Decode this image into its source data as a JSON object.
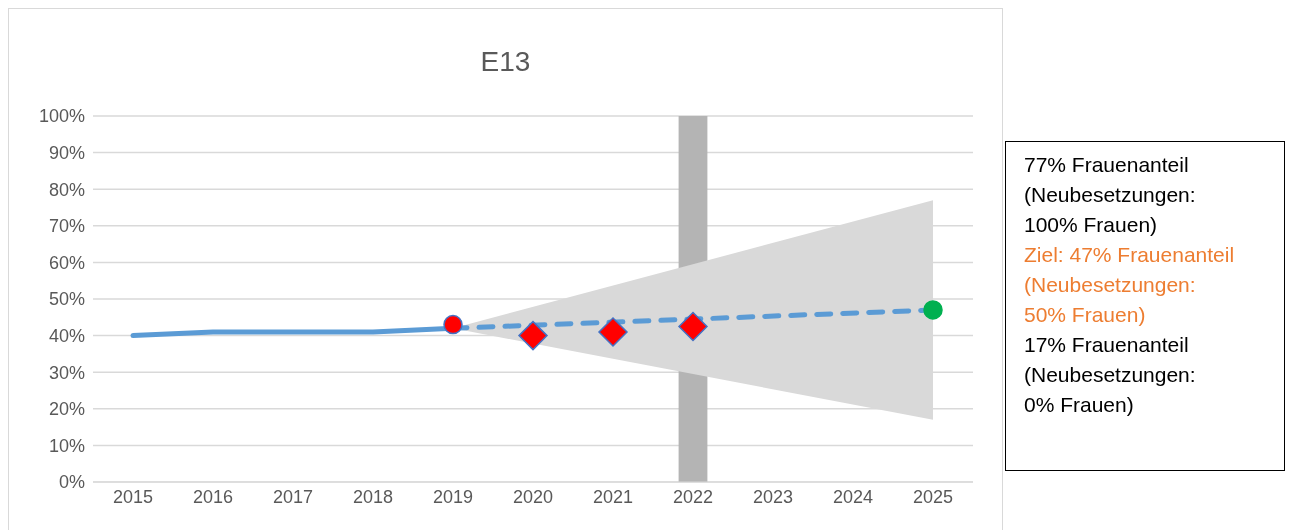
{
  "chart_data": {
    "type": "line",
    "title": "E13",
    "categories": [
      "2015",
      "2016",
      "2017",
      "2018",
      "2019",
      "2020",
      "2021",
      "2022",
      "2023",
      "2024",
      "2025"
    ],
    "series": [
      {
        "color": "#5b9bd5",
        "line_style": "solid",
        "marker": "none",
        "values": [
          40,
          41,
          41,
          41,
          42,
          null,
          null,
          null,
          null,
          null,
          null
        ]
      },
      {
        "type": "line",
        "color": "#5b9bd5",
        "line_style": "dashed",
        "marker": "none",
        "values": [
          null,
          null,
          null,
          null,
          42,
          null,
          null,
          null,
          null,
          null,
          47
        ],
        "lower": [
          null,
          null,
          null,
          null,
          42,
          null,
          null,
          null,
          null,
          null,
          17
        ],
        "upper": [
          null,
          null,
          null,
          null,
          42,
          null,
          null,
          null,
          null,
          null,
          77
        ]
      },
      {
        "type": "scatter",
        "color": "#ff0000",
        "marker": "circle",
        "values": [
          null,
          null,
          null,
          null,
          43,
          null,
          null,
          null,
          null,
          null,
          null
        ]
      },
      {
        "type": "scatter",
        "color": "#ff0000",
        "marker": "diamond",
        "values": [
          null,
          null,
          null,
          null,
          null,
          40,
          41,
          42.5,
          null,
          null,
          null
        ]
      },
      {
        "type": "scatter",
        "color": "#00b050",
        "marker": "circle",
        "values": [
          null,
          null,
          null,
          null,
          null,
          null,
          null,
          null,
          null,
          null,
          47
        ]
      }
    ],
    "bands": [
      {
        "axis": "x",
        "from": "2022",
        "to": "2022",
        "color": "#b4b4b4"
      }
    ],
    "annotations": [
      "77% Frauenanteil (Neubesetzungen: 100% Frauen)",
      "Ziel: 47% Frauenanteil (Neubesetzungen: 50% Frauen)",
      "17% Frauenanteil (Neubesetzungen: 0% Frauen)"
    ],
    "ylim": [
      0,
      100
    ],
    "yticks": [
      {
        "value": 0,
        "label": "0%"
      },
      {
        "value": 10,
        "label": "10%"
      },
      {
        "value": 20,
        "label": "20%"
      },
      {
        "value": 30,
        "label": "30%"
      },
      {
        "value": 40,
        "label": "40%"
      },
      {
        "value": 50,
        "label": "50%"
      },
      {
        "value": 60,
        "label": "60%"
      },
      {
        "value": 70,
        "label": "70%"
      },
      {
        "value": 80,
        "label": "80%"
      },
      {
        "value": 90,
        "label": "90%"
      },
      {
        "value": 100,
        "label": "100%"
      }
    ],
    "grid": "y",
    "legend": false
  }
}
